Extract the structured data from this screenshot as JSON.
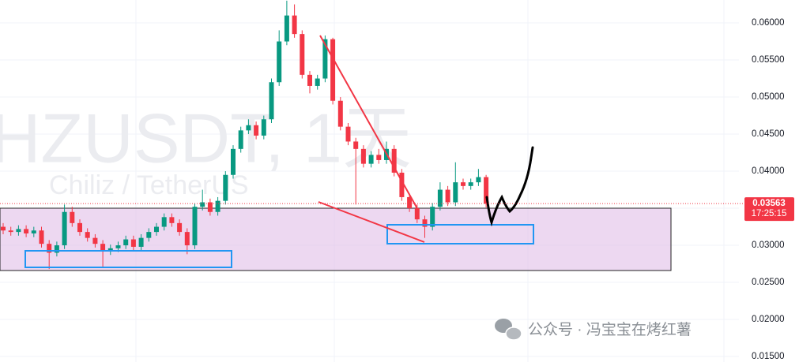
{
  "chart_data": {
    "type": "candlestick",
    "title": "HZUSDT, 1天",
    "subtitle": "Chiliz / TetherUS",
    "watermark": "公众号 · 冯宝宝在烤红薯",
    "up_color": "#089981",
    "down_color": "#f23645",
    "ylim": [
      0.01426,
      0.06309
    ],
    "yticks": [
      {
        "value": 0.015,
        "label": "0.01500"
      },
      {
        "value": 0.02,
        "label": "0.02000"
      },
      {
        "value": 0.025,
        "label": "0.02500"
      },
      {
        "value": 0.03,
        "label": "0.03000"
      },
      {
        "value": 0.035,
        "label": "0.03500"
      },
      {
        "value": 0.04,
        "label": "0.04000"
      },
      {
        "value": 0.045,
        "label": "0.04500"
      },
      {
        "value": 0.05,
        "label": "0.05000"
      },
      {
        "value": 0.055,
        "label": "0.05500"
      },
      {
        "value": 0.06,
        "label": "0.06000"
      }
    ],
    "last_price": {
      "value": 0.03563,
      "label": "0.03563"
    },
    "countdown": "17:25:15",
    "open": [
      0.0325,
      0.032,
      0.0318,
      0.0322,
      0.0316,
      0.032,
      0.0302,
      0.029,
      0.03,
      0.0345,
      0.033,
      0.0318,
      0.031,
      0.0302,
      0.0292,
      0.0296,
      0.03,
      0.0308,
      0.0298,
      0.031,
      0.0318,
      0.0325,
      0.0338,
      0.033,
      0.0318,
      0.03,
      0.0352,
      0.0358,
      0.0345,
      0.036,
      0.0395,
      0.043,
      0.0455,
      0.0462,
      0.0448,
      0.047,
      0.052,
      0.0575,
      0.061,
      0.0585,
      0.053,
      0.0515,
      0.0525,
      0.0578,
      0.0495,
      0.046,
      0.044,
      0.043,
      0.041,
      0.0422,
      0.0415,
      0.043,
      0.0398,
      0.0365,
      0.035,
      0.0335,
      0.0325,
      0.0352,
      0.0375,
      0.0358,
      0.0385,
      0.038,
      0.0385,
      0.0392
    ],
    "high": [
      0.033,
      0.0325,
      0.0327,
      0.0327,
      0.0325,
      0.0325,
      0.0307,
      0.0305,
      0.0355,
      0.0352,
      0.0335,
      0.0323,
      0.0315,
      0.0307,
      0.0301,
      0.0305,
      0.0313,
      0.0313,
      0.0315,
      0.0323,
      0.033,
      0.0343,
      0.0343,
      0.0335,
      0.0323,
      0.0357,
      0.0375,
      0.0363,
      0.0365,
      0.04,
      0.0435,
      0.046,
      0.047,
      0.0467,
      0.0475,
      0.0525,
      0.059,
      0.063,
      0.0625,
      0.059,
      0.0535,
      0.053,
      0.0583,
      0.058,
      0.05,
      0.0465,
      0.0445,
      0.0435,
      0.0427,
      0.043,
      0.044,
      0.0435,
      0.0403,
      0.037,
      0.0355,
      0.034,
      0.0357,
      0.0385,
      0.038,
      0.0412,
      0.039,
      0.039,
      0.0403,
      0.0395
    ],
    "low": [
      0.0315,
      0.0313,
      0.0313,
      0.0311,
      0.0311,
      0.0297,
      0.0268,
      0.0285,
      0.0295,
      0.0325,
      0.0313,
      0.0305,
      0.0297,
      0.027,
      0.0287,
      0.0291,
      0.0295,
      0.0293,
      0.0293,
      0.0305,
      0.0313,
      0.032,
      0.0325,
      0.0313,
      0.0288,
      0.0295,
      0.0347,
      0.034,
      0.034,
      0.0355,
      0.039,
      0.0425,
      0.045,
      0.0443,
      0.0443,
      0.0465,
      0.0515,
      0.057,
      0.058,
      0.0525,
      0.0505,
      0.051,
      0.052,
      0.049,
      0.0455,
      0.0435,
      0.0355,
      0.0405,
      0.0405,
      0.041,
      0.041,
      0.0393,
      0.036,
      0.0345,
      0.033,
      0.031,
      0.032,
      0.0347,
      0.0353,
      0.0353,
      0.0375,
      0.0375,
      0.038,
      0.0351
    ],
    "close": [
      0.032,
      0.0318,
      0.0322,
      0.0316,
      0.032,
      0.0302,
      0.029,
      0.03,
      0.0345,
      0.033,
      0.0318,
      0.031,
      0.0302,
      0.0292,
      0.0296,
      0.03,
      0.0308,
      0.0298,
      0.031,
      0.0318,
      0.0325,
      0.0338,
      0.033,
      0.0318,
      0.03,
      0.0352,
      0.0358,
      0.0345,
      0.036,
      0.0395,
      0.043,
      0.0455,
      0.0462,
      0.0448,
      0.047,
      0.052,
      0.0575,
      0.061,
      0.0585,
      0.053,
      0.0515,
      0.0525,
      0.0578,
      0.0495,
      0.046,
      0.044,
      0.043,
      0.041,
      0.0422,
      0.0415,
      0.043,
      0.0398,
      0.0365,
      0.035,
      0.0335,
      0.0325,
      0.0352,
      0.0375,
      0.0358,
      0.0385,
      0.038,
      0.0385,
      0.0392,
      0.0356
    ]
  }
}
